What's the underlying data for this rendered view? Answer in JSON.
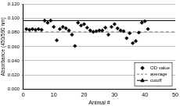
{
  "chart_data": {
    "type": "scatter",
    "x_label": "Animal #",
    "y_label": "Absorbance (450/590 nm)",
    "xlim": [
      0,
      50
    ],
    "xticks": [
      0,
      10,
      20,
      30,
      40,
      50
    ],
    "ylim": [
      0,
      0.12
    ],
    "yticks": [
      {
        "value": 0,
        "label": "0.000"
      },
      {
        "value": 0.02,
        "label": "0.020"
      },
      {
        "value": 0.04,
        "label": "0.040"
      },
      {
        "value": 0.06,
        "label": "0.060"
      },
      {
        "value": 0.08,
        "label": "0.080"
      },
      {
        "value": 0.1,
        "label": "0.100"
      },
      {
        "value": 0.12,
        "label": "0.120"
      }
    ],
    "grid": true,
    "legend": "lower right",
    "series": [
      {
        "name": "OD value",
        "type": "scatter",
        "marker": "diamond",
        "color": "#000000",
        "x": [
          1,
          2,
          3,
          4,
          5,
          6,
          7,
          8,
          9,
          10,
          11,
          12,
          13,
          14,
          15,
          16,
          17,
          18,
          19,
          20,
          21,
          22,
          23,
          24,
          25,
          26,
          27,
          28,
          29,
          30,
          31,
          32,
          33,
          34,
          35,
          36,
          37,
          38,
          39,
          40,
          41
        ],
        "values": [
          0.085,
          0.084,
          0.085,
          0.084,
          0.085,
          0.084,
          0.097,
          0.094,
          0.097,
          0.088,
          0.069,
          0.085,
          0.088,
          0.086,
          0.083,
          0.077,
          0.061,
          0.094,
          0.09,
          0.092,
          0.087,
          0.083,
          0.081,
          0.082,
          0.083,
          0.083,
          0.087,
          0.077,
          0.088,
          0.092,
          0.086,
          0.083,
          0.082,
          0.072,
          0.079,
          0.065,
          0.068,
          0.08,
          0.094,
          0.096,
          0.085
        ]
      },
      {
        "name": "average",
        "type": "line",
        "line_style": "dashed",
        "color": "#808080",
        "x": [
          0,
          50
        ],
        "values": [
          0.081,
          0.081
        ]
      },
      {
        "name": "cutoff",
        "type": "line",
        "marker": "triangle",
        "line_style": "solid",
        "color": "#000000",
        "x": [
          0,
          50
        ],
        "values": [
          0.097,
          0.097
        ]
      }
    ]
  }
}
